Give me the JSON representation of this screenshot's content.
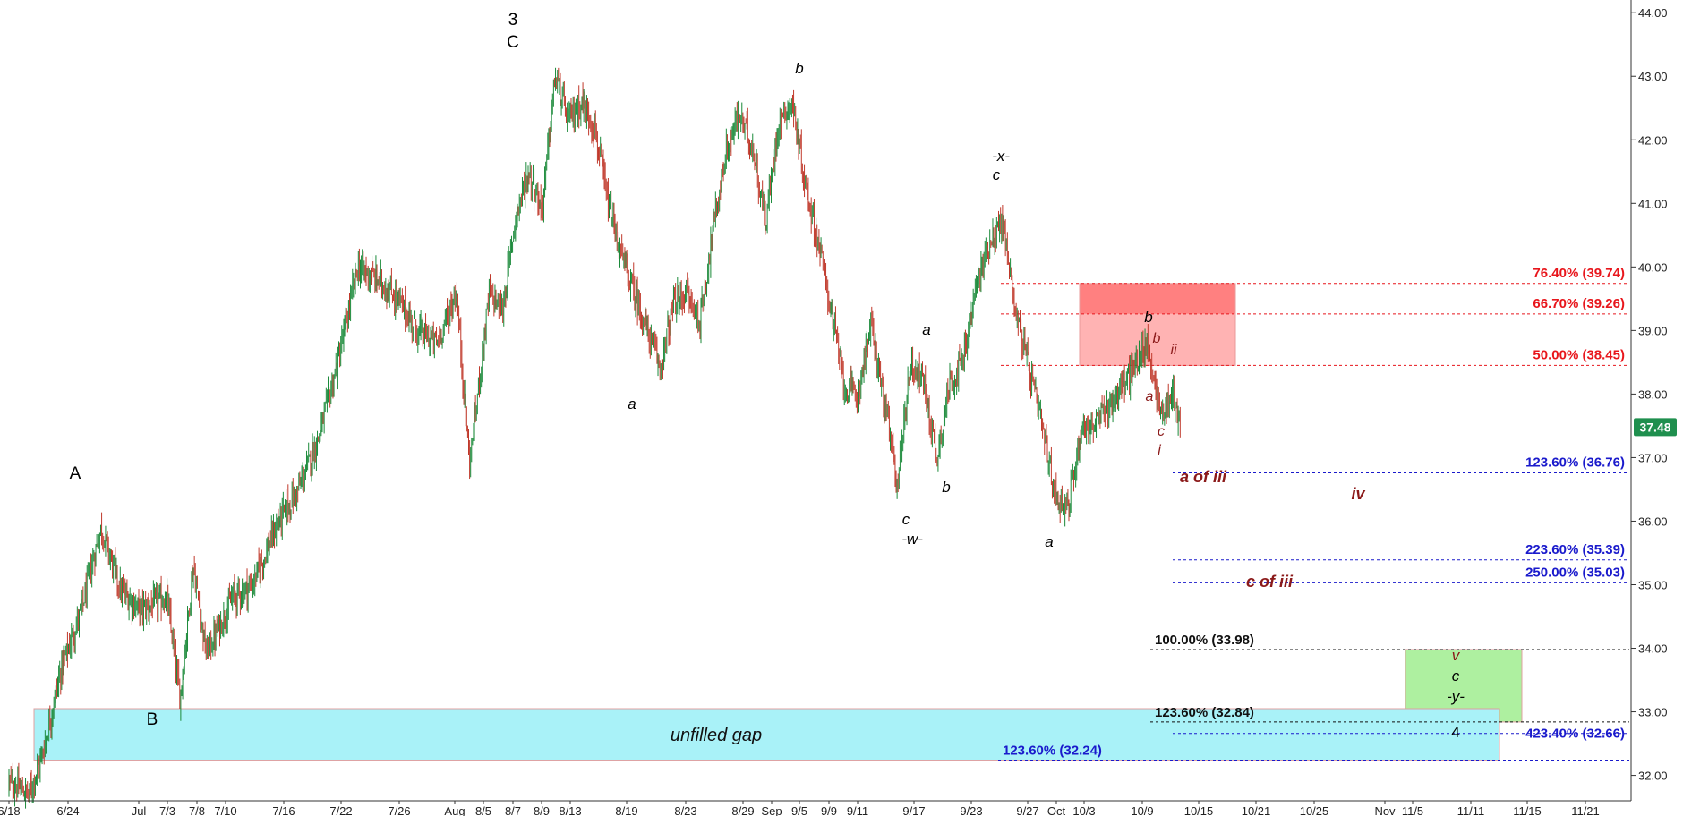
{
  "chart_data": {
    "type": "candlestick",
    "title": "",
    "xlabel": "",
    "ylabel": "",
    "ylim": [
      31.6,
      44.2
    ],
    "y_ticks": [
      "32.00",
      "33.00",
      "34.00",
      "35.00",
      "36.00",
      "37.00",
      "38.00",
      "39.00",
      "40.00",
      "41.00",
      "42.00",
      "43.00",
      "44.00"
    ],
    "x_tick_labels": [
      "6/18",
      "6/24",
      "Jul",
      "7/3",
      "7/8",
      "7/10",
      "7/16",
      "7/22",
      "7/26",
      "Aug",
      "8/5",
      "8/7",
      "8/9",
      "8/13",
      "8/19",
      "8/23",
      "8/29",
      "Sep",
      "9/5",
      "9/9",
      "9/11",
      "9/17",
      "9/23",
      "9/27",
      "Oct",
      "10/3",
      "10/9",
      "10/15",
      "10/21",
      "10/25",
      "Nov",
      "11/5",
      "11/11",
      "11/15",
      "11/21"
    ],
    "price_path": [
      [
        0,
        31.9
      ],
      [
        3,
        31.7
      ],
      [
        5,
        32.3
      ],
      [
        8,
        33.7
      ],
      [
        11,
        34.6
      ],
      [
        14,
        35.9
      ],
      [
        17,
        34.9
      ],
      [
        20,
        34.6
      ],
      [
        24,
        34.8
      ],
      [
        26,
        33.2
      ],
      [
        28,
        35.3
      ],
      [
        30,
        33.9
      ],
      [
        34,
        34.8
      ],
      [
        37,
        35.0
      ],
      [
        41,
        36.0
      ],
      [
        44,
        36.5
      ],
      [
        47,
        37.3
      ],
      [
        50,
        38.5
      ],
      [
        53,
        40.0
      ],
      [
        56,
        39.8
      ],
      [
        59,
        39.5
      ],
      [
        62,
        39.0
      ],
      [
        65,
        38.8
      ],
      [
        68,
        39.6
      ],
      [
        70,
        36.9
      ],
      [
        73,
        39.6
      ],
      [
        75,
        39.3
      ],
      [
        77,
        40.8
      ],
      [
        79,
        41.5
      ],
      [
        81,
        40.9
      ],
      [
        83,
        43.0
      ],
      [
        85,
        42.3
      ],
      [
        87,
        42.6
      ],
      [
        89,
        42.2
      ],
      [
        91,
        41.0
      ],
      [
        93,
        40.2
      ],
      [
        95,
        39.6
      ],
      [
        97,
        39.0
      ],
      [
        99,
        38.4
      ],
      [
        101,
        39.4
      ],
      [
        103,
        39.6
      ],
      [
        105,
        39.1
      ],
      [
        107,
        40.6
      ],
      [
        109,
        41.8
      ],
      [
        111,
        42.4
      ],
      [
        113,
        41.9
      ],
      [
        115,
        40.7
      ],
      [
        117,
        42.3
      ],
      [
        119,
        42.6
      ],
      [
        121,
        41.3
      ],
      [
        123,
        40.4
      ],
      [
        125,
        39.3
      ],
      [
        127,
        38.1
      ],
      [
        129,
        38.0
      ],
      [
        131,
        39.1
      ],
      [
        133,
        37.9
      ],
      [
        135,
        36.6
      ],
      [
        137,
        38.5
      ],
      [
        139,
        38.2
      ],
      [
        141,
        37.0
      ],
      [
        143,
        38.2
      ],
      [
        145,
        38.5
      ],
      [
        147,
        39.7
      ],
      [
        149,
        40.4
      ],
      [
        151,
        40.7
      ],
      [
        153,
        39.3
      ],
      [
        155,
        38.4
      ],
      [
        157,
        37.5
      ],
      [
        159,
        36.4
      ],
      [
        161,
        36.2
      ],
      [
        163,
        37.5
      ],
      [
        165,
        37.5
      ],
      [
        167,
        37.8
      ],
      [
        169,
        38.1
      ],
      [
        171,
        38.4
      ],
      [
        173,
        38.8
      ],
      [
        175,
        37.7
      ],
      [
        177,
        38.0
      ],
      [
        178,
        37.48
      ]
    ],
    "last_price": "37.48",
    "zones": [
      {
        "name": "resistance-zone",
        "y_low": 38.45,
        "y_high": 39.74,
        "color": "#ffb3b3",
        "color_upper": "#ff8080"
      },
      {
        "name": "target-zone",
        "y_low": 32.84,
        "y_high": 33.98,
        "color": "#aef0a0"
      },
      {
        "name": "unfilled-gap",
        "label": "unfilled gap",
        "y_low": 32.24,
        "y_high": 33.05,
        "color": "#a9f2f8"
      }
    ],
    "levels": [
      {
        "label": "76.40% (39.74)",
        "value": 39.74,
        "color": "#e8161c"
      },
      {
        "label": "66.70% (39.26)",
        "value": 39.26,
        "color": "#e8161c"
      },
      {
        "label": "50.00% (38.45)",
        "value": 38.45,
        "color": "#e8161c"
      },
      {
        "label": "123.60% (36.76)",
        "value": 36.76,
        "color": "#1a1acc"
      },
      {
        "label": "223.60% (35.39)",
        "value": 35.39,
        "color": "#1a1acc"
      },
      {
        "label": "250.00% (35.03)",
        "value": 35.03,
        "color": "#1a1acc"
      },
      {
        "label": "100.00% (33.98)",
        "value": 33.98,
        "color": "#111111"
      },
      {
        "label": "123.60% (32.84)",
        "value": 32.84,
        "color": "#111111"
      },
      {
        "label": "423.40% (32.66)",
        "value": 32.66,
        "color": "#1a1acc"
      },
      {
        "label": "123.60% (32.24)",
        "value": 32.24,
        "color": "#1a1acc"
      }
    ],
    "wave_labels": [
      {
        "text": "3",
        "color": "#000000"
      },
      {
        "text": "C",
        "color": "#000000"
      },
      {
        "text": "A",
        "color": "#000000"
      },
      {
        "text": "B",
        "color": "#000000"
      },
      {
        "text": "a",
        "color": "#000000"
      },
      {
        "text": "b",
        "color": "#000000"
      },
      {
        "text": "a",
        "color": "#000000"
      },
      {
        "text": "b",
        "color": "#000000"
      },
      {
        "text": "c",
        "color": "#000000"
      },
      {
        "text": "-w-",
        "color": "#000000"
      },
      {
        "text": "-x-",
        "color": "#000000"
      },
      {
        "text": "c",
        "color": "#000000"
      },
      {
        "text": "a",
        "color": "#000000"
      },
      {
        "text": "b",
        "color": "#000000"
      },
      {
        "text": "b",
        "color": "#8b1a1a"
      },
      {
        "text": "ii",
        "color": "#8b1a1a"
      },
      {
        "text": "a",
        "color": "#8b1a1a"
      },
      {
        "text": "c",
        "color": "#8b1a1a"
      },
      {
        "text": "i",
        "color": "#8b1a1a"
      },
      {
        "text": "a of iii",
        "color": "#8b1a1a"
      },
      {
        "text": "iv",
        "color": "#8b1a1a"
      },
      {
        "text": "c of iii",
        "color": "#8b1a1a"
      },
      {
        "text": "v",
        "color": "#8b1a1a"
      },
      {
        "text": "c",
        "color": "#000000"
      },
      {
        "text": "-y-",
        "color": "#000000"
      },
      {
        "text": "4",
        "color": "#000000"
      }
    ],
    "grid": false,
    "legend": "none"
  }
}
